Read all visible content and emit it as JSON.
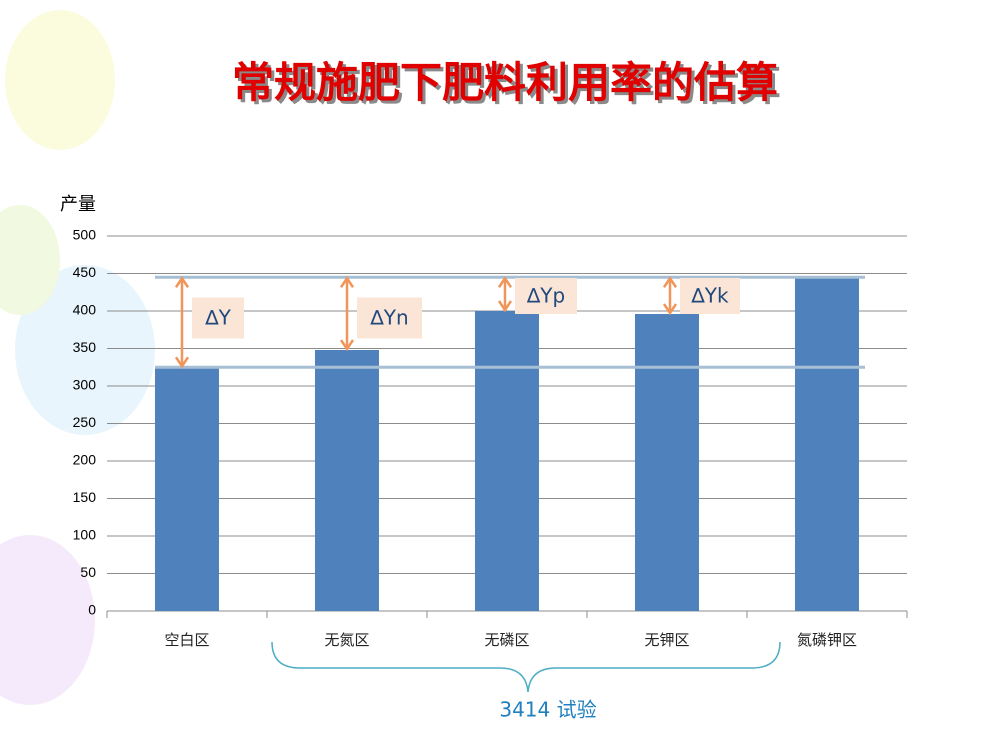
{
  "chart_data": {
    "type": "bar",
    "title": "常规施肥下肥料利用率的估算",
    "y_label": "产量",
    "categories": [
      "空白区",
      "无氮区",
      "无磷区",
      "无钾区",
      "氮磷钾区"
    ],
    "values": [
      325,
      348,
      400,
      396,
      445
    ],
    "color": "#4f81bd",
    "ylim": [
      0,
      500
    ],
    "yticks": [
      0,
      50,
      100,
      150,
      200,
      250,
      300,
      350,
      400,
      450,
      500
    ],
    "grid": true,
    "annotations": [
      "∆Y",
      "∆Yn",
      "∆Yp",
      "∆Yk"
    ],
    "bracket_label": "3414 试验"
  }
}
